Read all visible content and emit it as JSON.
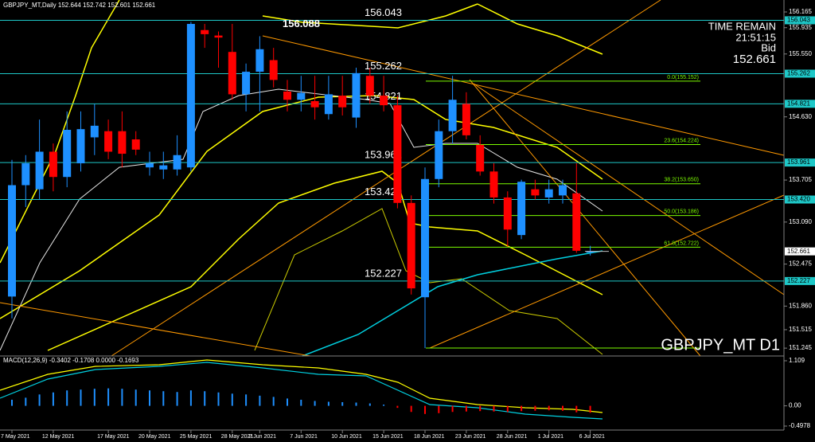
{
  "chart_data": {
    "type": "candlestick",
    "title": "GBPJPY_MT,Daily 152.644 152.742 152.601 152.661",
    "watermark": "GBPJPY_MT D1",
    "timer": {
      "title": "TIME REMAIN",
      "time": "21:51:15",
      "bid_label": "Bid",
      "bid": 152.661
    },
    "up_color": "#1e90ff",
    "down_color": "#ff0000",
    "categories": [
      "7 May 2021",
      null,
      null,
      "12 May 2021",
      null,
      null,
      null,
      "17 May 2021",
      null,
      null,
      "20 May 2021",
      null,
      null,
      "25 May 2021",
      null,
      null,
      "28 May 2021",
      null,
      "2 Jun 2021",
      null,
      null,
      "7 Jun 2021",
      null,
      null,
      "10 Jun 2021",
      null,
      null,
      "15 Jun 2021",
      null,
      null,
      "18 Jun 2021",
      null,
      null,
      "23 Jun 2021",
      null,
      null,
      "28 Jun 2021",
      null,
      null,
      "1 Jul 2021",
      null,
      null,
      "6 Jul 2021"
    ],
    "open": [
      152.0,
      153.63,
      153.57,
      154.12,
      153.75,
      153.95,
      154.33,
      154.42,
      154.42,
      154.3,
      153.89,
      153.86,
      153.86,
      153.89,
      155.9,
      155.82,
      155.58,
      154.96,
      155.29,
      155.46,
      155.0,
      154.88,
      154.86,
      154.67,
      154.94,
      154.62,
      155.23,
      154.94,
      154.8,
      153.37,
      151.99,
      153.72,
      154.42,
      154.82,
      154.22,
      153.83,
      153.45,
      152.9,
      153.57,
      153.45,
      153.48,
      153.51,
      152.644
    ],
    "high": [
      154.0,
      154.07,
      154.59,
      154.24,
      154.71,
      154.71,
      154.82,
      154.59,
      154.71,
      154.42,
      154.12,
      154.12,
      154.36,
      156.02,
      155.99,
      155.88,
      155.99,
      155.41,
      155.81,
      155.64,
      155.17,
      155.23,
      155.23,
      155.23,
      155.23,
      155.35,
      155.35,
      155.23,
      154.94,
      153.48,
      153.89,
      154.59,
      155.23,
      154.99,
      154.36,
      153.95,
      153.54,
      153.71,
      153.71,
      153.71,
      153.71,
      153.95,
      152.742
    ],
    "low": [
      151.68,
      153.31,
      153.42,
      153.54,
      153.6,
      153.83,
      154.07,
      154.01,
      153.89,
      154.07,
      153.77,
      153.72,
      153.77,
      153.83,
      155.64,
      155.35,
      154.88,
      154.71,
      154.71,
      155.06,
      154.71,
      154.71,
      154.59,
      154.59,
      154.65,
      154.47,
      154.82,
      154.71,
      153.29,
      152.03,
      151.245,
      153.6,
      154.24,
      154.3,
      153.77,
      153.36,
      152.73,
      152.84,
      153.42,
      153.36,
      153.36,
      152.64,
      152.601
    ],
    "close": [
      153.63,
      153.95,
      154.12,
      153.75,
      154.44,
      154.45,
      154.5,
      154.12,
      154.09,
      154.15,
      153.95,
      153.92,
      154.07,
      155.99,
      155.84,
      155.79,
      154.96,
      155.29,
      155.62,
      155.17,
      154.88,
      154.98,
      154.77,
      154.96,
      154.77,
      155.27,
      154.94,
      154.8,
      153.37,
      152.12,
      153.72,
      154.42,
      154.88,
      154.36,
      153.83,
      153.45,
      152.98,
      153.68,
      153.48,
      153.57,
      153.63,
      152.67,
      152.661
    ],
    "ylim": [
      151.13,
      156.34
    ],
    "yticks": [
      156.165,
      155.935,
      {
        "value": 155.55,
        "label": "155.550"
      },
      {
        "value": 154.63,
        "label": "154.630"
      },
      153.705,
      {
        "value": 153.09,
        "label": "153.090"
      },
      152.475,
      {
        "value": 151.86,
        "label": "151.860"
      },
      151.515,
      151.245
    ],
    "levels": [
      156.043,
      155.262,
      154.821,
      153.961,
      {
        "value": 153.42,
        "label": "153.420"
      },
      152.227
    ],
    "level_color": "#1ec8c8",
    "high_mark": 156.088,
    "fib_color": "#7cfc00",
    "fib": [
      {
        "value": 155.152,
        "label": "0.0(155.152)"
      },
      {
        "value": 154.224,
        "label": "23.6(154.224)"
      },
      {
        "value": 153.65,
        "label": "38.2(153.650)"
      },
      {
        "value": 153.186,
        "label": "50.0(153.186)"
      },
      {
        "value": 152.722,
        "label": "61.8(152.722)"
      }
    ],
    "macd": {
      "label": "MACD(12,26,9) -0.3402 -0.1708 0.0000 -0.1693",
      "ylim": [
        -0.596,
        1.207
      ],
      "yticks": [
        1.109,
        {
          "value": 0,
          "label": "0.00"
        },
        -0.4978
      ],
      "values": [
        0.15,
        0.2,
        0.28,
        0.33,
        0.38,
        0.4,
        0.42,
        0.43,
        0.42,
        0.4,
        0.38,
        0.36,
        0.34,
        0.38,
        0.36,
        0.33,
        0.3,
        0.28,
        0.25,
        0.22,
        0.18,
        0.15,
        0.12,
        0.1,
        0.09,
        0.08,
        0.06,
        0.03,
        -0.05,
        -0.15,
        -0.2,
        -0.18,
        -0.15,
        -0.14,
        -0.13,
        -0.14,
        -0.15,
        -0.13,
        -0.12,
        -0.11,
        -0.12,
        -0.16,
        -0.1693
      ]
    }
  }
}
